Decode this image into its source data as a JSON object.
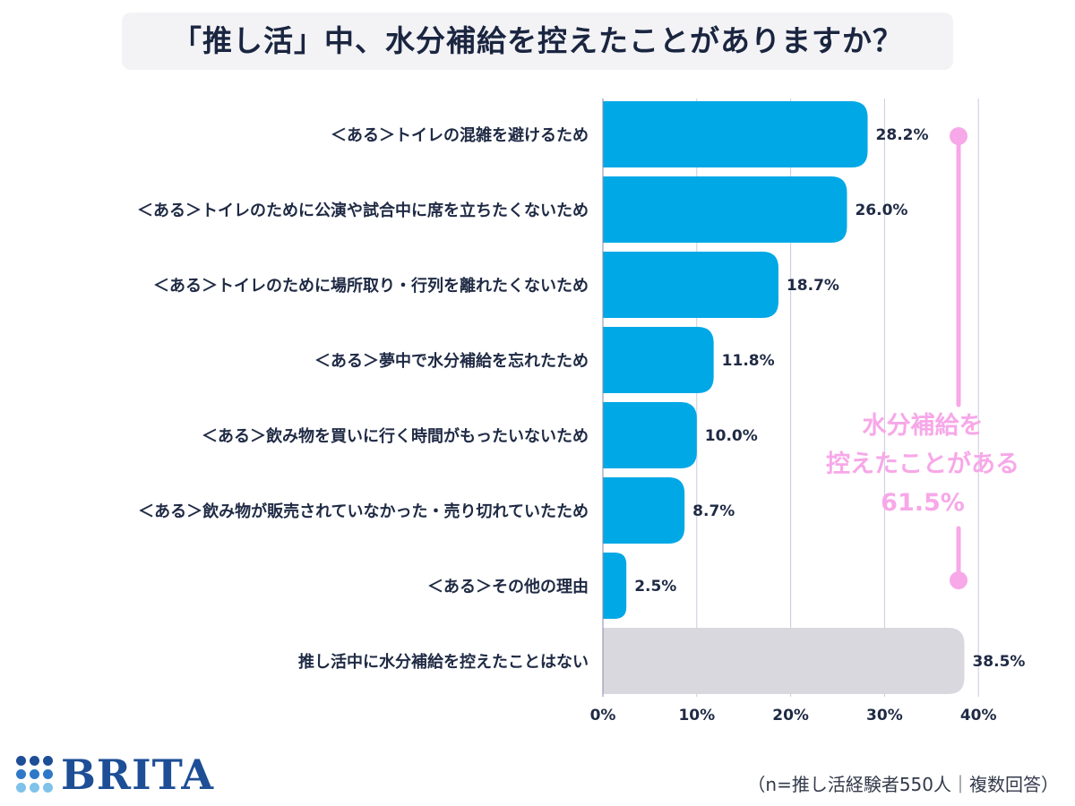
{
  "title": "「推し活」中、水分補給を控えたことがありますか？",
  "annotation": {
    "line1": "水分補給を",
    "line2": "控えたことがある",
    "line3": "61.5%",
    "color": "#f7a8e8"
  },
  "footnote": "（n=推し活経験者550人｜複数回答）",
  "logo": {
    "text": "BRITA",
    "color": "#1d4e96"
  },
  "chart_data": {
    "type": "bar",
    "orientation": "horizontal",
    "title": "「推し活」中、水分補給を控えたことがありますか？",
    "categories": [
      "＜ある＞トイレの混雑を避けるため",
      "＜ある＞トイレのために公演や試合中に席を立ちたくないため",
      "＜ある＞トイレのために場所取り・行列を離れたくないため",
      "＜ある＞夢中で水分補給を忘れたため",
      "＜ある＞飲み物を買いに行く時間がもったいないため",
      "＜ある＞飲み物が販売されていなかった・売り切れていたため",
      "＜ある＞その他の理由",
      "推し活中に水分補給を控えたことはない"
    ],
    "values": [
      28.2,
      26.0,
      18.7,
      11.8,
      10.0,
      8.7,
      2.5,
      38.5
    ],
    "value_labels": [
      "28.2%",
      "26.0%",
      "18.7%",
      "11.8%",
      "10.0%",
      "8.7%",
      "2.5%",
      "38.5%"
    ],
    "bar_colors": [
      "#00a8e6",
      "#00a8e6",
      "#00a8e6",
      "#00a8e6",
      "#00a8e6",
      "#00a8e6",
      "#00a8e6",
      "#d9d8de"
    ],
    "xlim": [
      0,
      40
    ],
    "ticks": [
      0,
      10,
      20,
      30,
      40
    ],
    "tick_labels": [
      "0%",
      "10%",
      "20%",
      "30%",
      "40%"
    ],
    "grid": true,
    "gridline_color": "#c9c9e0"
  }
}
